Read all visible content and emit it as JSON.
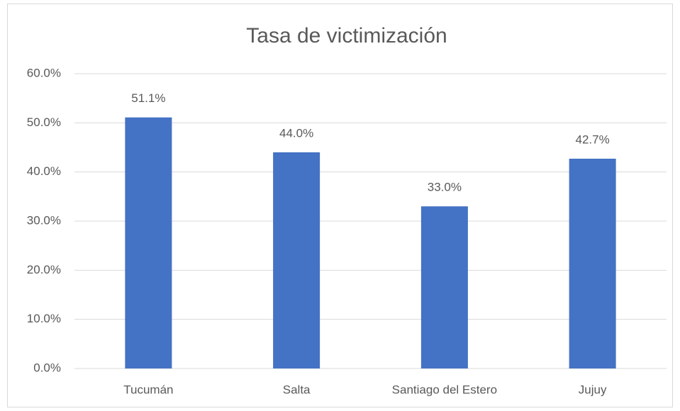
{
  "chart_data": {
    "type": "bar",
    "title": "Tasa de victimización",
    "categories": [
      "Tucumán",
      "Salta",
      "Santiago del Estero",
      "Jujuy"
    ],
    "values": [
      51.1,
      44.0,
      33.0,
      42.7
    ],
    "value_labels": [
      "51.1%",
      "44.0%",
      "33.0%",
      "42.7%"
    ],
    "color": "#4472c4",
    "ylim": [
      0,
      60
    ],
    "yticks": [
      {
        "value": 0,
        "label": "0.0%"
      },
      {
        "value": 10,
        "label": "10.0%"
      },
      {
        "value": 20,
        "label": "20.0%"
      },
      {
        "value": 30,
        "label": "30.0%"
      },
      {
        "value": 40,
        "label": "40.0%"
      },
      {
        "value": 50,
        "label": "50.0%"
      },
      {
        "value": 60,
        "label": "60.0%"
      }
    ],
    "grid": true
  }
}
